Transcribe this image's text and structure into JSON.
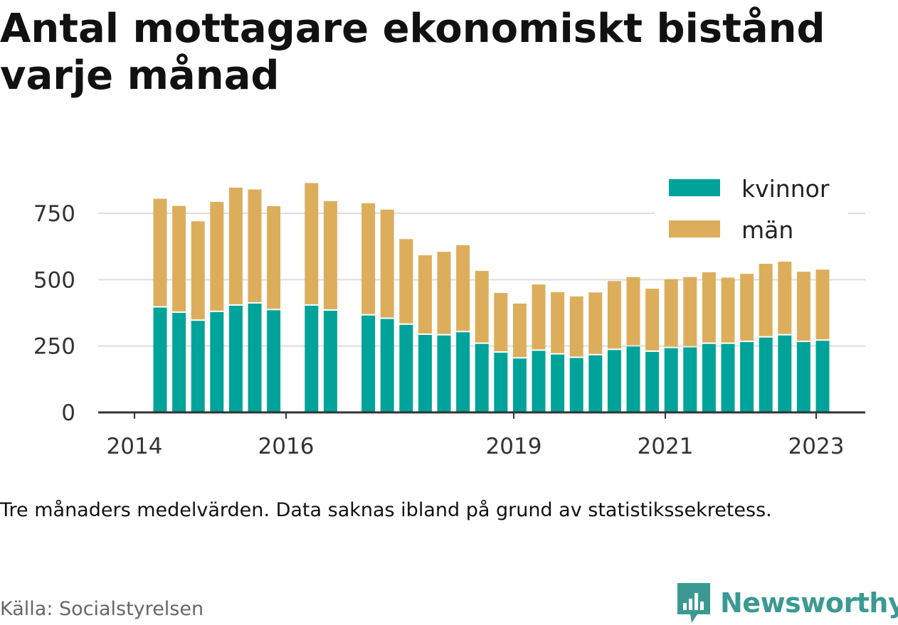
{
  "title": "Antal mottagare ekonomiskt bistånd varje månad",
  "note": "Tre månaders medelvärden. Data saknas ibland på grund av statistikssekretess.",
  "source": "Källa: Socialstyrelsen",
  "brand": "Newsworthy",
  "colors": {
    "kvinnor": "#00a399",
    "man": "#dcae5c",
    "grid": "#dddddd",
    "axis": "#333333",
    "brand": "#3a9a93"
  },
  "chart_data": {
    "type": "bar",
    "stacked": true,
    "x_ticks": [
      "2014",
      "2016",
      "2019",
      "2021",
      "2023"
    ],
    "y_ticks": [
      0,
      250,
      500,
      750
    ],
    "ylim": [
      0,
      880
    ],
    "legend_position": "top-right",
    "grid": true,
    "series": [
      {
        "name": "kvinnor",
        "color": "#00a399",
        "values": [
          395,
          375,
          345,
          378,
          402,
          410,
          385,
          null,
          402,
          383,
          null,
          365,
          352,
          330,
          292,
          290,
          302,
          258,
          225,
          203,
          232,
          218,
          205,
          215,
          235,
          248,
          228,
          242,
          245,
          258,
          258,
          265,
          282,
          290,
          265,
          270
        ]
      },
      {
        "name": "män",
        "color": "#dcae5c",
        "values": [
          410,
          403,
          375,
          415,
          445,
          430,
          392,
          null,
          462,
          413,
          null,
          423,
          412,
          323,
          300,
          315,
          328,
          275,
          225,
          207,
          250,
          235,
          232,
          237,
          260,
          262,
          238,
          260,
          265,
          270,
          250,
          257,
          278,
          278,
          265,
          268
        ]
      }
    ]
  }
}
